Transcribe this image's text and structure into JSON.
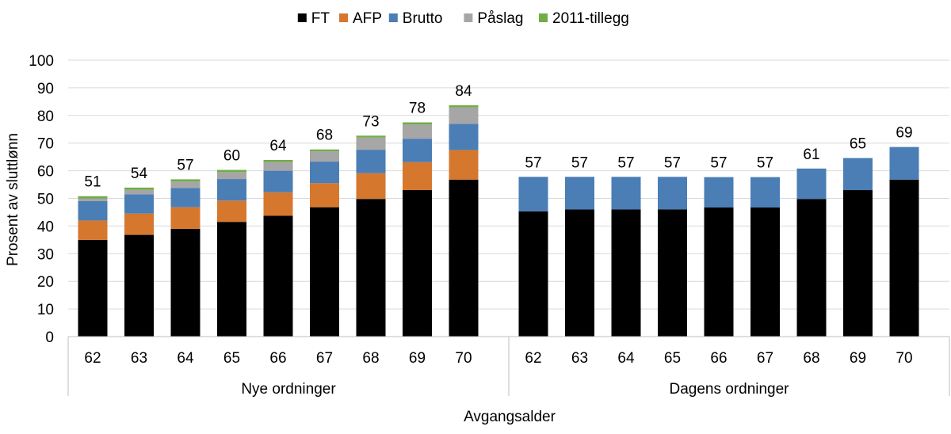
{
  "chart_data": {
    "type": "bar",
    "stacked": true,
    "legend_position": "top-center",
    "ylabel": "Prosent av sluttlønn",
    "xlabel": "Avgangsalder",
    "ylim": [
      0,
      100
    ],
    "yticks": [
      "0",
      "10",
      "20",
      "30",
      "40",
      "50",
      "60",
      "70",
      "80",
      "90",
      "100"
    ],
    "grid": true,
    "groups": [
      {
        "label": "Nye ordninger",
        "categories": [
          "62",
          "63",
          "64",
          "65",
          "66",
          "67",
          "68",
          "69",
          "70"
        ]
      },
      {
        "label": "Dagens ordninger",
        "categories": [
          "62",
          "63",
          "64",
          "65",
          "66",
          "67",
          "68",
          "69",
          "70"
        ]
      }
    ],
    "series": [
      {
        "name": "FT",
        "color": "#000000",
        "values": [
          35,
          36.8,
          39,
          41.5,
          43.7,
          46.8,
          49.8,
          53,
          56.8,
          45.3,
          46,
          46,
          46,
          46.7,
          46.7,
          49.8,
          53,
          56.8
        ]
      },
      {
        "name": "AFP",
        "color": "#d6772e",
        "values": [
          7,
          7.7,
          7.8,
          7.7,
          8.5,
          8.7,
          9.3,
          10.1,
          10.7,
          0,
          0,
          0,
          0,
          0,
          0,
          0,
          0,
          0
        ]
      },
      {
        "name": "Brutto",
        "color": "#4a7eb5",
        "values": [
          7,
          7,
          7,
          7.8,
          7.8,
          7.8,
          8.5,
          8.5,
          9.5,
          12.5,
          11.8,
          11.8,
          11.8,
          11,
          11,
          11,
          11.6,
          11.8
        ]
      },
      {
        "name": "Påslag",
        "color": "#a6a6a6",
        "values": [
          1,
          1.6,
          2.3,
          2.5,
          3.2,
          3.7,
          4.4,
          5.1,
          5.9,
          0,
          0,
          0,
          0,
          0,
          0,
          0,
          0,
          0
        ]
      },
      {
        "name": "2011-tillegg",
        "color": "#70ad47",
        "values": [
          0.8,
          0.8,
          0.8,
          0.8,
          0.7,
          0.7,
          0.7,
          0.8,
          0.8,
          0,
          0,
          0,
          0,
          0,
          0,
          0,
          0,
          0
        ]
      }
    ],
    "totals": [
      "51",
      "54",
      "57",
      "60",
      "64",
      "68",
      "73",
      "78",
      "84",
      "57",
      "57",
      "57",
      "57",
      "57",
      "57",
      "61",
      "65",
      "69"
    ]
  }
}
